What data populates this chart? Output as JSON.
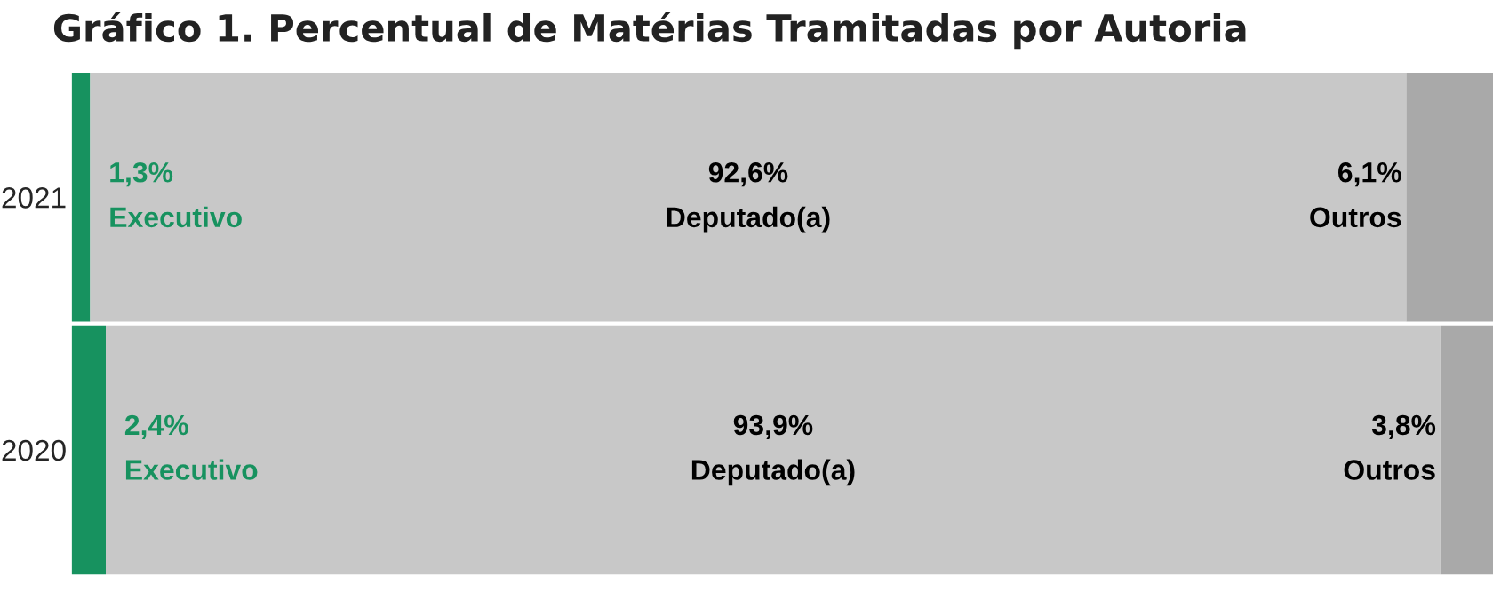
{
  "chart_data": {
    "type": "bar",
    "orientation": "horizontal",
    "stacked": true,
    "title": "Gráfico 1. Percentual de Matérias Tramitadas por Autoria",
    "categories": [
      "2021",
      "2020"
    ],
    "series": [
      {
        "name": "Executivo",
        "color": "#17925f",
        "values": [
          1.3,
          2.4
        ],
        "value_labels": [
          "1,3%",
          "2,4%"
        ]
      },
      {
        "name": "Deputado(a)",
        "color": "#c8c8c8",
        "values": [
          92.6,
          93.9
        ],
        "value_labels": [
          "92,6%",
          "93,9%"
        ]
      },
      {
        "name": "Outros",
        "color": "#a9a9a9",
        "values": [
          6.1,
          3.8
        ],
        "value_labels": [
          "6,1%",
          "3,8%"
        ]
      }
    ],
    "xlim": [
      0,
      100
    ],
    "tick_labels": "y",
    "grid": false,
    "legend": false
  }
}
